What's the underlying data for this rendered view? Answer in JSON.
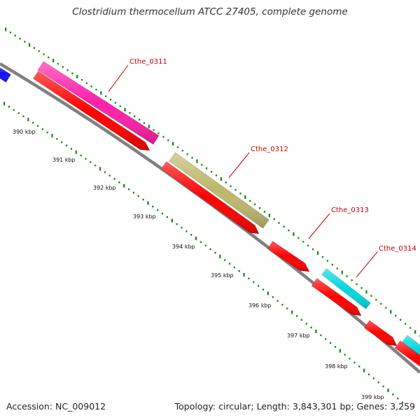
{
  "title": "Clostridium thermocellum ATCC 27405, complete genome",
  "footer": {
    "accession": "Accession: NC_009012",
    "stats": "Topology: circular; Length: 3,843,301 bp; Genes: 3,259"
  },
  "colors": {
    "backbone": "#808080",
    "tick": "#0a8a0a",
    "label": "#cc0000",
    "red_cds": "#ff0000",
    "magenta_cds": "#ff1faa",
    "olive_cds": "#bdb76b",
    "cyan_cds": "#00d8e0",
    "blue_cds": "#1010ff"
  },
  "genes": [
    {
      "name": "Cthe_0311"
    },
    {
      "name": "Cthe_0312"
    },
    {
      "name": "Cthe_0313"
    },
    {
      "name": "Cthe_0314"
    }
  ],
  "kbp_labels": [
    "390 kbp",
    "391 kbp",
    "392 kbp",
    "393 kbp",
    "394 kbp",
    "395 kbp",
    "396 kbp",
    "397 kbp",
    "398 kbp",
    "399 kbp"
  ]
}
